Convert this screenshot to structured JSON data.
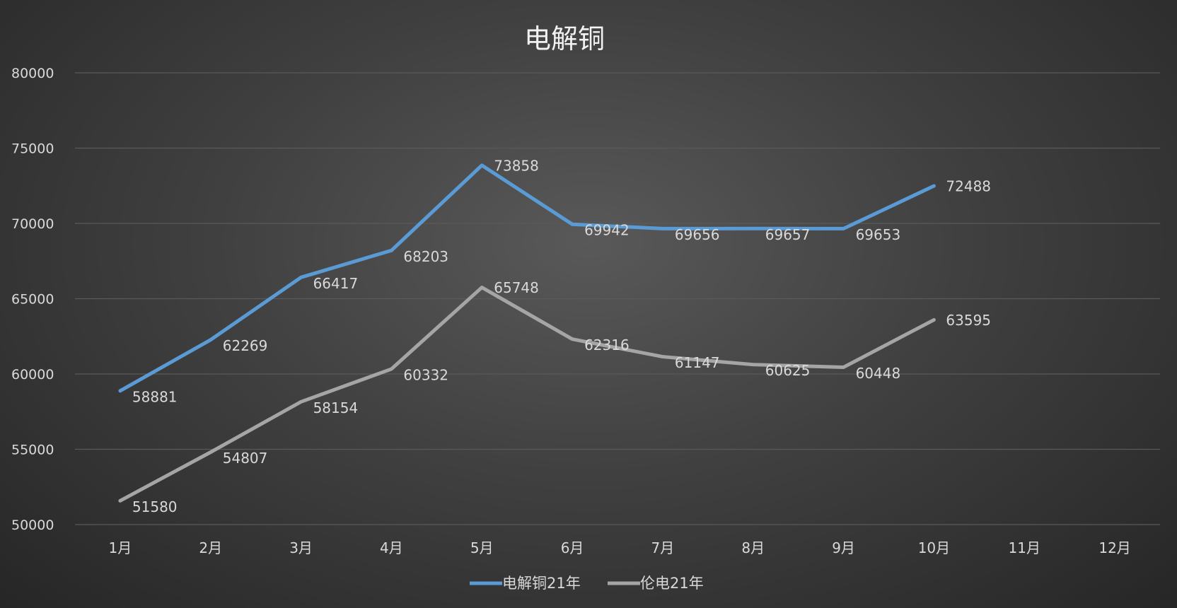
{
  "chart_data": {
    "type": "line",
    "title": "电解铜",
    "categories": [
      "1月",
      "2月",
      "3月",
      "4月",
      "5月",
      "6月",
      "7月",
      "8月",
      "9月",
      "10月",
      "11月",
      "12月"
    ],
    "series": [
      {
        "name": "电解铜21年",
        "color": "#5b9bd5",
        "values": [
          58881,
          62269,
          66417,
          68203,
          73858,
          69942,
          69656,
          69657,
          69653,
          72488,
          null,
          null
        ]
      },
      {
        "name": "伦电21年",
        "color": "#a5a5a5",
        "values": [
          51580,
          54807,
          58154,
          60332,
          65748,
          62316,
          61147,
          60625,
          60448,
          63595,
          null,
          null
        ]
      }
    ],
    "ylim": [
      50000,
      80000
    ],
    "yticks": [
      50000,
      55000,
      60000,
      65000,
      70000,
      75000,
      80000
    ],
    "grid": true,
    "legend": "bottom",
    "data_labels": true
  }
}
